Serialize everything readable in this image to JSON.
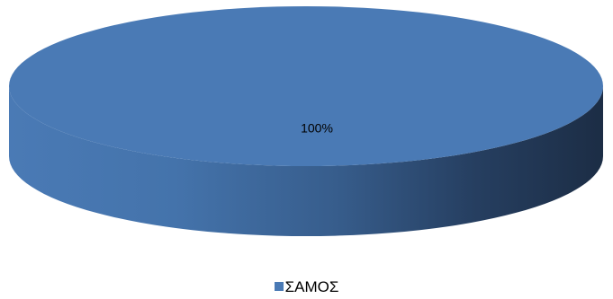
{
  "chart_data": {
    "type": "pie",
    "style": "3d",
    "categories": [
      "ΣΑΜΟΣ"
    ],
    "values": [
      100
    ],
    "data_labels": [
      "100%"
    ],
    "legend_position": "bottom",
    "colors": {
      "slice_top": "#4a7ab5",
      "slice_side_light": "#4a7ab5",
      "slice_side_dark": "#1c2d45"
    }
  },
  "legend": {
    "items": [
      {
        "label": "ΣΑΜΟΣ",
        "color": "#4a7ab5"
      }
    ]
  }
}
